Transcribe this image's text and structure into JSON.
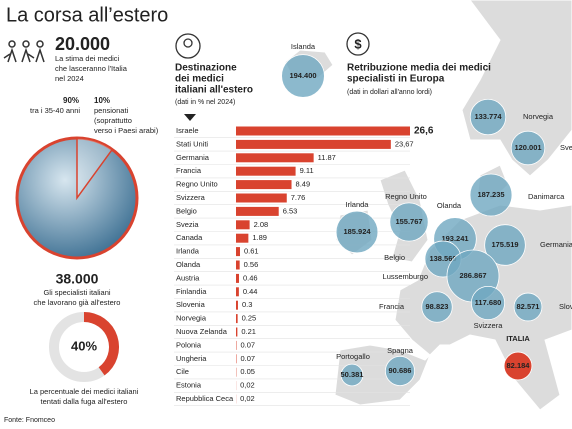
{
  "header": {
    "title": "La corsa all’estero"
  },
  "stats": {
    "forecast": {
      "value": "20.000",
      "lines": [
        "La stima dei medici",
        "che lasceranno l'Italia",
        "nel 2024"
      ]
    },
    "age_split": {
      "main": {
        "value": 90,
        "label": "90%"
      },
      "main_lines": [
        "tra i 35-40 anni"
      ],
      "minor": {
        "value": 10,
        "label": "10%"
      },
      "minor_lines": [
        "pensionati",
        "(soprattutto",
        "verso i Paesi arabi)"
      ]
    },
    "abroad": {
      "value": "38.000",
      "lines": [
        "Gli specialisti italiani",
        "che lavorano già all'estero"
      ]
    },
    "share": {
      "value": 40,
      "label": "40%"
    },
    "share_lines": [
      "La percentuale dei medici italiani",
      "tentati dalla fuga all'estero"
    ]
  },
  "chart_data": {
    "type": "bar",
    "orientation": "horizontal",
    "title_lines": [
      "Destinazione",
      "dei medici",
      "italiani all'estero"
    ],
    "subtitle": "(dati in % nel 2024)",
    "color": "#d9432f",
    "categories": [
      "Israele",
      "Stati Uniti",
      "Germania",
      "Francia",
      "Regno Unito",
      "Svizzera",
      "Belgio",
      "Svezia",
      "Canada",
      "Irlanda",
      "Olanda",
      "Austria",
      "Finlandia",
      "Slovenia",
      "Norvegia",
      "Nuova Zelanda",
      "Polonia",
      "Ungheria",
      "Cile",
      "Estonia",
      "Repubblica Ceca"
    ],
    "values": [
      26.6,
      23.67,
      11.87,
      9.11,
      8.49,
      7.76,
      6.53,
      2.08,
      1.89,
      0.61,
      0.56,
      0.46,
      0.44,
      0.3,
      0.25,
      0.21,
      0.07,
      0.07,
      0.05,
      0.02,
      0.02
    ],
    "value_labels": [
      "26,6",
      "23,67",
      "11.87",
      "9.11",
      "8.49",
      "7.76",
      "6.53",
      "2.08",
      "1.89",
      "0.61",
      "0.56",
      "0.46",
      "0.44",
      "0.3",
      "0.25",
      "0.21",
      "0.07",
      "0.07",
      "0.05",
      "0,02",
      "0,02"
    ]
  },
  "map": {
    "title_lines": [
      "Retribuzione media dei medici",
      "specialisti in Europa"
    ],
    "subtitle": "(dati in dollari all'anno lordi)",
    "color": "#6fa8c0",
    "highlight_color": "#d9432f",
    "bubbles": [
      {
        "name": "Islanda",
        "value": 194400,
        "label": "194.400"
      },
      {
        "name": "Norvegia",
        "value": 133774,
        "label": "133.774"
      },
      {
        "name": "Svezia",
        "value": 120001,
        "label": "120.001"
      },
      {
        "name": "Danimarca",
        "value": 187235,
        "label": "187.235"
      },
      {
        "name": "Irlanda",
        "value": 185924,
        "label": "185.924"
      },
      {
        "name": "Regno Unito",
        "value": 155767,
        "label": "155.767"
      },
      {
        "name": "Olanda",
        "value": 193241,
        "label": "193.241"
      },
      {
        "name": "Germania",
        "value": 175519,
        "label": "175.519"
      },
      {
        "name": "Belgio",
        "value": 138560,
        "label": "138.560"
      },
      {
        "name": "Lussemburgo",
        "value": 286867,
        "label": "286.867"
      },
      {
        "name": "Francia",
        "value": 98823,
        "label": "98.823"
      },
      {
        "name": "Svizzera",
        "value": 117680,
        "label": "117.680"
      },
      {
        "name": "Slovenia",
        "value": 82571,
        "label": "82.571"
      },
      {
        "name": "Spagna",
        "value": 90686,
        "label": "90.686"
      },
      {
        "name": "Portogallo",
        "value": 50381,
        "label": "50.381"
      },
      {
        "name": "ITALIA",
        "value": 82184,
        "label": "82.184",
        "highlight": true
      }
    ]
  },
  "footer": {
    "source": "Fonte: Fnomceo"
  }
}
